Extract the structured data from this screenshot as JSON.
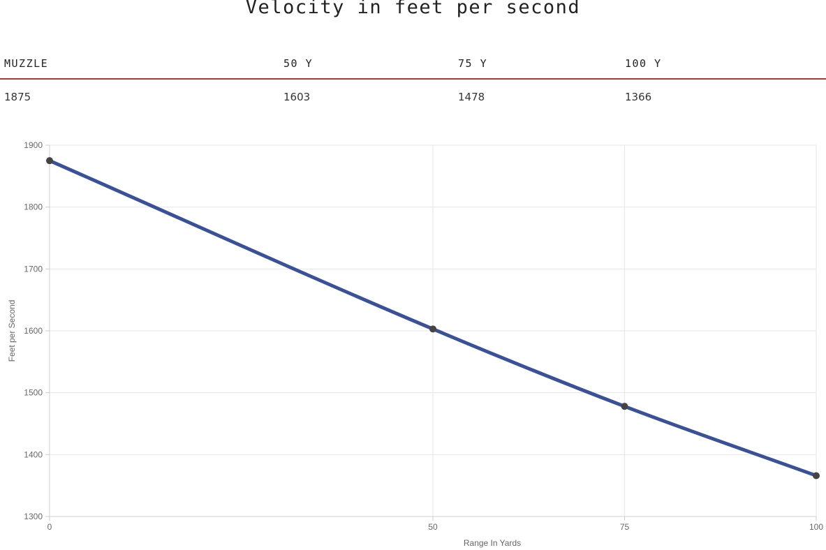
{
  "page": {
    "title": "Velocity in feet per second"
  },
  "velocity_table": {
    "headers": [
      "MUZZLE",
      "50 Y",
      "75 Y",
      "100 Y"
    ],
    "values": [
      "1875",
      "1603",
      "1478",
      "1366"
    ]
  },
  "colors": {
    "line": "#3a5199",
    "point": "#444444",
    "grid": "#e6e6e6",
    "table_rule": "#b03a2e"
  },
  "chart_data": {
    "type": "line",
    "title": "",
    "xlabel": "Range In Yards",
    "ylabel": "Feet per Second",
    "categories": [
      "0",
      "50",
      "75",
      "100"
    ],
    "series": [
      {
        "name": "Velocity",
        "values": [
          1875,
          1603,
          1478,
          1366
        ]
      }
    ],
    "ylim": [
      1300,
      1900
    ],
    "yticks": [
      1300,
      1400,
      1500,
      1600,
      1700,
      1800,
      1900
    ],
    "grid": true,
    "legend": "none"
  }
}
